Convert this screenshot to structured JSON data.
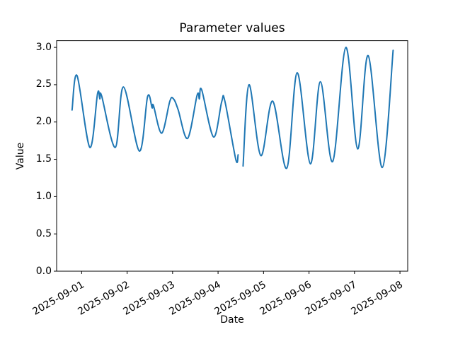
{
  "chart_data": {
    "type": "line",
    "title": "Parameter values",
    "xlabel": "Date",
    "ylabel": "Value",
    "x_unit": "days since 2025-09-01 00:00",
    "xlim": [
      -0.55,
      7.17
    ],
    "ylim": [
      0,
      3.09
    ],
    "grid": false,
    "legend": "none",
    "line_color": "#1f77b4",
    "axis_color": "#000000",
    "x_ticks": [
      {
        "t": 0,
        "label": "2025-09-01"
      },
      {
        "t": 1,
        "label": "2025-09-02"
      },
      {
        "t": 2,
        "label": "2025-09-03"
      },
      {
        "t": 3,
        "label": "2025-09-04"
      },
      {
        "t": 4,
        "label": "2025-09-05"
      },
      {
        "t": 5,
        "label": "2025-09-06"
      },
      {
        "t": 6,
        "label": "2025-09-07"
      },
      {
        "t": 7,
        "label": "2025-09-08"
      }
    ],
    "y_ticks": [
      {
        "v": 0.0,
        "label": "0.0"
      },
      {
        "v": 0.5,
        "label": "0.5"
      },
      {
        "v": 1.0,
        "label": "1.0"
      },
      {
        "v": 1.5,
        "label": "1.5"
      },
      {
        "v": 2.0,
        "label": "2.0"
      },
      {
        "v": 2.5,
        "label": "2.5"
      },
      {
        "v": 3.0,
        "label": "3.0"
      }
    ],
    "series": [
      {
        "points": [
          [
            -0.21,
            2.16
          ],
          [
            -0.1,
            2.62
          ],
          [
            0.18,
            1.66
          ],
          [
            0.35,
            2.38
          ],
          [
            0.4,
            2.31
          ],
          [
            0.44,
            2.35
          ],
          [
            0.74,
            1.66
          ],
          [
            0.92,
            2.47
          ],
          [
            1.27,
            1.61
          ],
          [
            1.45,
            2.34
          ],
          [
            1.55,
            2.19
          ],
          [
            1.58,
            2.22
          ],
          [
            1.76,
            1.85
          ],
          [
            1.94,
            2.28
          ],
          [
            2.02,
            2.31
          ],
          [
            2.12,
            2.17
          ],
          [
            2.33,
            1.78
          ],
          [
            2.54,
            2.36
          ],
          [
            2.59,
            2.31
          ],
          [
            2.64,
            2.43
          ],
          [
            2.9,
            1.8
          ],
          [
            3.08,
            2.27
          ],
          [
            3.15,
            2.28
          ],
          [
            3.39,
            1.5
          ],
          [
            3.44,
            1.56
          ],
          null,
          [
            3.55,
            1.41
          ],
          [
            3.68,
            2.5
          ],
          [
            3.94,
            1.55
          ],
          [
            4.2,
            2.28
          ],
          [
            4.51,
            1.38
          ],
          [
            4.74,
            2.66
          ],
          [
            5.03,
            1.44
          ],
          [
            5.25,
            2.54
          ],
          [
            5.52,
            1.47
          ],
          [
            5.81,
            3.0
          ],
          [
            6.07,
            1.64
          ],
          [
            6.3,
            2.89
          ],
          [
            6.61,
            1.39
          ],
          [
            6.85,
            2.96
          ]
        ]
      }
    ]
  }
}
